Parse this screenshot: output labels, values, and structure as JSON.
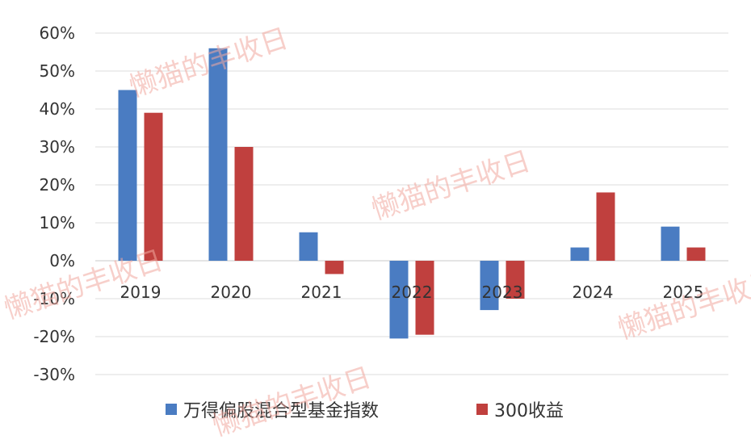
{
  "chart_data": {
    "type": "bar",
    "title": "",
    "xlabel": "",
    "ylabel": "",
    "categories": [
      "2019",
      "2020",
      "2021",
      "2022",
      "2023",
      "2024",
      "2025"
    ],
    "series": [
      {
        "name": "万得偏股混合型基金指数",
        "color": "#4a7cc2",
        "values": [
          45,
          56,
          7.5,
          -20.5,
          -13,
          3.5,
          9
        ]
      },
      {
        "name": "300收益",
        "color": "#c0403e",
        "values": [
          39,
          30,
          -3.5,
          -19.5,
          -10,
          18,
          3.5
        ]
      }
    ],
    "ylim": [
      -30,
      60
    ],
    "yticks": [
      "60%",
      "50%",
      "40%",
      "30%",
      "20%",
      "10%",
      "0%",
      "-10%",
      "-20%",
      "-30%"
    ],
    "ytick_values": [
      60,
      50,
      40,
      30,
      20,
      10,
      0,
      -10,
      -20,
      -30
    ],
    "grid": true,
    "legend_position": "bottom",
    "watermark": "懒猫的丰收日"
  }
}
